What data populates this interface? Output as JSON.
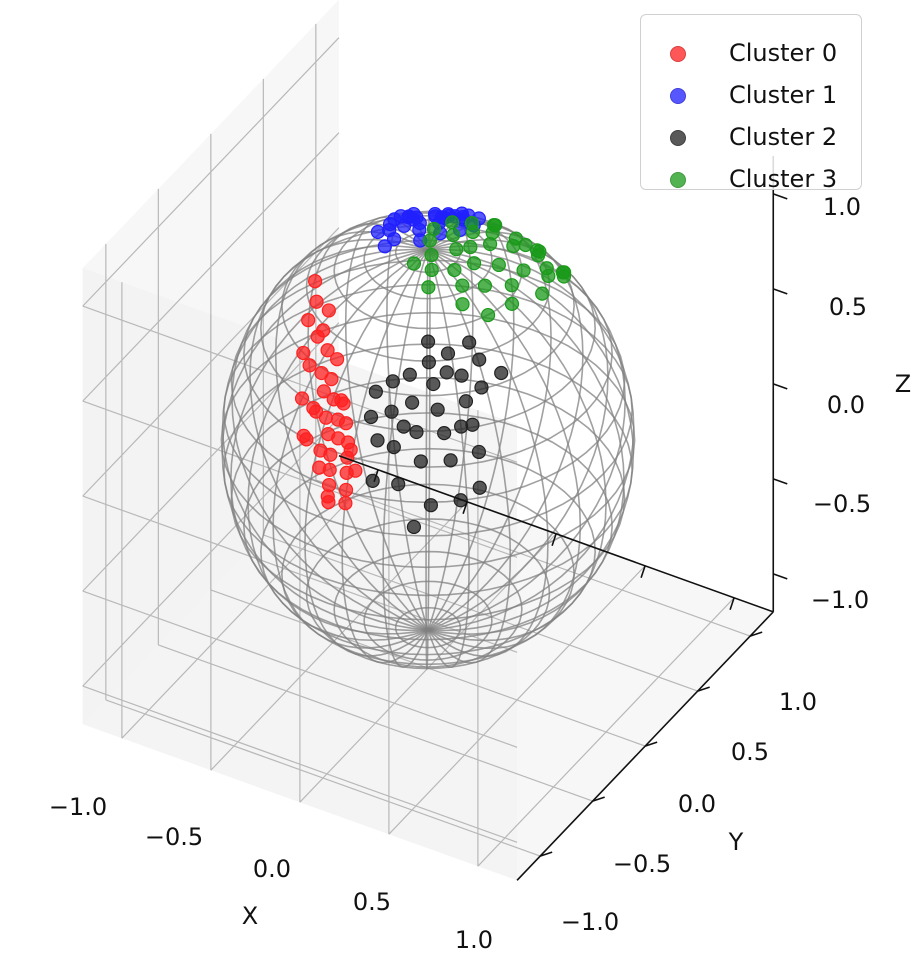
{
  "chart_data": {
    "type": "scatter",
    "projection": "3d",
    "xlabel": "X",
    "ylabel": "Y",
    "zlabel": "Z",
    "xlim": [
      -1.1,
      1.1
    ],
    "ylim": [
      -1.1,
      1.1
    ],
    "zlim": [
      -1.1,
      1.1
    ],
    "grid": true,
    "legend_position": "top-right",
    "x_ticks": [
      "−1.0",
      "−0.5",
      "0.0",
      "0.5",
      "1.0"
    ],
    "y_ticks": [
      "−1.0",
      "−0.5",
      "0.0",
      "0.5",
      "1.0"
    ],
    "z_ticks": [
      "−1.0",
      "−0.5",
      "0.0",
      "0.5",
      "1.0"
    ],
    "wireframe": {
      "shape": "unit sphere",
      "color": "#808080"
    },
    "series": [
      {
        "name": "Cluster 0",
        "color": "#ff2020",
        "points": [
          [
            -1.0,
            -0.62,
            0.14
          ],
          [
            -0.98,
            -0.6,
            0.05
          ],
          [
            -0.97,
            -0.7,
            -0.05
          ],
          [
            -0.95,
            -0.56,
            -0.1
          ],
          [
            -0.99,
            -0.68,
            -0.15
          ],
          [
            -0.93,
            -0.62,
            -0.2
          ],
          [
            -0.96,
            -0.5,
            -0.22
          ],
          [
            -0.9,
            -0.66,
            -0.26
          ],
          [
            -0.94,
            -0.58,
            -0.3
          ],
          [
            -0.88,
            -0.5,
            -0.33
          ],
          [
            -0.92,
            -0.64,
            -0.36
          ],
          [
            -0.86,
            -0.56,
            -0.4
          ],
          [
            -0.9,
            -0.46,
            -0.42
          ],
          [
            -0.84,
            -0.62,
            -0.45
          ],
          [
            -0.88,
            -0.52,
            -0.48
          ],
          [
            -0.82,
            -0.44,
            -0.5
          ],
          [
            -0.86,
            -0.6,
            -0.53
          ],
          [
            -0.8,
            -0.5,
            -0.55
          ],
          [
            -0.84,
            -0.4,
            -0.57
          ],
          [
            -0.78,
            -0.56,
            -0.6
          ],
          [
            -0.82,
            -0.46,
            -0.62
          ],
          [
            -0.76,
            -0.52,
            -0.65
          ],
          [
            -0.8,
            -0.42,
            -0.67
          ],
          [
            -0.74,
            -0.48,
            -0.7
          ],
          [
            -0.78,
            -0.38,
            -0.72
          ],
          [
            -0.72,
            -0.44,
            -0.76
          ],
          [
            -0.76,
            -0.34,
            -0.78
          ],
          [
            -0.7,
            -0.4,
            -0.8
          ],
          [
            -0.92,
            -0.36,
            -0.3
          ],
          [
            -0.86,
            -0.3,
            -0.46
          ],
          [
            -0.9,
            -0.7,
            -0.5
          ],
          [
            -0.85,
            -0.66,
            -0.58
          ],
          [
            -0.8,
            -0.62,
            -0.68
          ],
          [
            -0.75,
            -0.58,
            -0.75
          ],
          [
            -0.96,
            -0.44,
            -0.12
          ],
          [
            -0.8,
            -0.32,
            -0.6
          ],
          [
            -0.84,
            -0.24,
            -0.4
          ],
          [
            -0.74,
            -0.3,
            -0.72
          ],
          [
            -0.98,
            -0.52,
            0.0
          ],
          [
            -0.88,
            -0.4,
            -0.36
          ]
        ]
      },
      {
        "name": "Cluster 1",
        "color": "#2020ff",
        "points": [
          [
            -0.5,
            -0.62,
            0.6
          ],
          [
            -0.45,
            -0.68,
            0.56
          ],
          [
            -0.52,
            -0.52,
            0.66
          ],
          [
            -0.4,
            -0.6,
            0.66
          ],
          [
            -0.35,
            -0.7,
            0.62
          ],
          [
            -0.46,
            -0.46,
            0.74
          ],
          [
            -0.3,
            -0.58,
            0.74
          ],
          [
            -0.25,
            -0.68,
            0.7
          ],
          [
            -0.4,
            -0.42,
            0.8
          ],
          [
            -0.2,
            -0.54,
            0.8
          ],
          [
            -0.15,
            -0.64,
            0.76
          ],
          [
            -0.32,
            -0.36,
            0.86
          ],
          [
            -0.1,
            -0.5,
            0.85
          ],
          [
            -0.26,
            -0.3,
            0.9
          ],
          [
            -0.05,
            -0.42,
            0.9
          ],
          [
            -0.56,
            -0.58,
            0.58
          ],
          [
            -0.48,
            -0.74,
            0.46
          ],
          [
            -0.58,
            -0.66,
            0.48
          ],
          [
            -0.38,
            -0.76,
            0.52
          ],
          [
            -0.28,
            -0.78,
            0.56
          ],
          [
            -0.18,
            -0.74,
            0.64
          ],
          [
            -0.36,
            -0.5,
            0.76
          ],
          [
            -0.22,
            -0.44,
            0.86
          ],
          [
            -0.12,
            -0.36,
            0.92
          ],
          [
            -0.3,
            -0.64,
            0.7
          ],
          [
            -0.44,
            -0.56,
            0.7
          ],
          [
            -0.6,
            -0.54,
            0.58
          ],
          [
            -0.62,
            -0.64,
            0.44
          ],
          [
            -0.14,
            -0.56,
            0.82
          ],
          [
            -0.24,
            -0.6,
            0.76
          ],
          [
            -0.08,
            -0.62,
            0.78
          ],
          [
            -0.34,
            -0.44,
            0.82
          ]
        ]
      },
      {
        "name": "Cluster 2",
        "color": "#222222",
        "points": [
          [
            0.36,
            0.42,
            0.82
          ],
          [
            0.3,
            0.5,
            0.8
          ],
          [
            0.42,
            0.32,
            0.84
          ],
          [
            0.24,
            0.58,
            0.76
          ],
          [
            0.36,
            0.56,
            0.74
          ],
          [
            0.46,
            0.46,
            0.76
          ],
          [
            0.3,
            0.66,
            0.68
          ],
          [
            0.42,
            0.62,
            0.66
          ],
          [
            0.52,
            0.52,
            0.68
          ],
          [
            0.22,
            0.72,
            0.64
          ],
          [
            0.36,
            0.72,
            0.58
          ],
          [
            0.48,
            0.66,
            0.58
          ],
          [
            0.58,
            0.56,
            0.6
          ],
          [
            0.28,
            0.8,
            0.52
          ],
          [
            0.42,
            0.78,
            0.48
          ],
          [
            0.54,
            0.7,
            0.48
          ],
          [
            0.64,
            0.6,
            0.5
          ],
          [
            0.34,
            0.86,
            0.38
          ],
          [
            0.5,
            0.82,
            0.3
          ],
          [
            0.62,
            0.74,
            0.32
          ],
          [
            0.18,
            0.64,
            0.74
          ],
          [
            0.26,
            0.44,
            0.86
          ],
          [
            0.5,
            0.36,
            0.8
          ],
          [
            0.56,
            0.44,
            0.72
          ],
          [
            0.2,
            0.82,
            0.54
          ],
          [
            0.12,
            0.7,
            0.7
          ],
          [
            0.6,
            0.32,
            0.74
          ],
          [
            0.44,
            0.88,
            0.2
          ],
          [
            0.68,
            0.66,
            0.36
          ],
          [
            0.3,
            0.74,
            0.6
          ],
          [
            0.4,
            0.5,
            0.78
          ],
          [
            0.14,
            0.78,
            0.62
          ],
          [
            0.54,
            0.6,
            0.6
          ],
          [
            0.22,
            0.9,
            0.38
          ]
        ]
      },
      {
        "name": "Cluster 3",
        "color": "#1a9a1a",
        "points": [
          [
            0.02,
            0.0,
            0.98
          ],
          [
            0.1,
            -0.1,
            0.98
          ],
          [
            -0.06,
            -0.12,
            0.96
          ],
          [
            0.08,
            0.1,
            0.98
          ],
          [
            0.16,
            0.02,
            0.96
          ],
          [
            0.0,
            -0.24,
            0.94
          ],
          [
            -0.12,
            -0.26,
            0.92
          ],
          [
            0.12,
            -0.2,
            0.94
          ],
          [
            0.2,
            -0.1,
            0.94
          ],
          [
            0.24,
            0.08,
            0.94
          ],
          [
            0.04,
            -0.36,
            0.9
          ],
          [
            -0.1,
            -0.4,
            0.88
          ],
          [
            0.16,
            -0.32,
            0.9
          ],
          [
            0.28,
            -0.2,
            0.9
          ],
          [
            0.32,
            0.0,
            0.92
          ],
          [
            0.08,
            -0.48,
            0.84
          ],
          [
            -0.06,
            -0.52,
            0.82
          ],
          [
            0.22,
            -0.44,
            0.84
          ],
          [
            0.36,
            -0.3,
            0.84
          ],
          [
            0.4,
            -0.12,
            0.88
          ],
          [
            0.14,
            -0.6,
            0.76
          ],
          [
            0.3,
            -0.54,
            0.76
          ],
          [
            0.44,
            -0.4,
            0.78
          ],
          [
            0.0,
            -0.64,
            0.76
          ],
          [
            0.2,
            -0.7,
            0.66
          ],
          [
            0.38,
            -0.64,
            0.64
          ],
          [
            0.1,
            -0.76,
            0.62
          ],
          [
            0.28,
            -0.82,
            0.48
          ],
          [
            0.16,
            -0.86,
            0.46
          ],
          [
            0.42,
            0.14,
            0.88
          ],
          [
            -0.02,
            0.1,
            0.98
          ],
          [
            0.3,
            0.18,
            0.92
          ],
          [
            0.46,
            -0.02,
            0.86
          ],
          [
            0.5,
            -0.24,
            0.8
          ],
          [
            0.26,
            -0.62,
            0.72
          ],
          [
            0.04,
            -0.56,
            0.82
          ],
          [
            0.34,
            -0.72,
            0.58
          ],
          [
            0.12,
            0.2,
            0.96
          ]
        ]
      }
    ]
  }
}
